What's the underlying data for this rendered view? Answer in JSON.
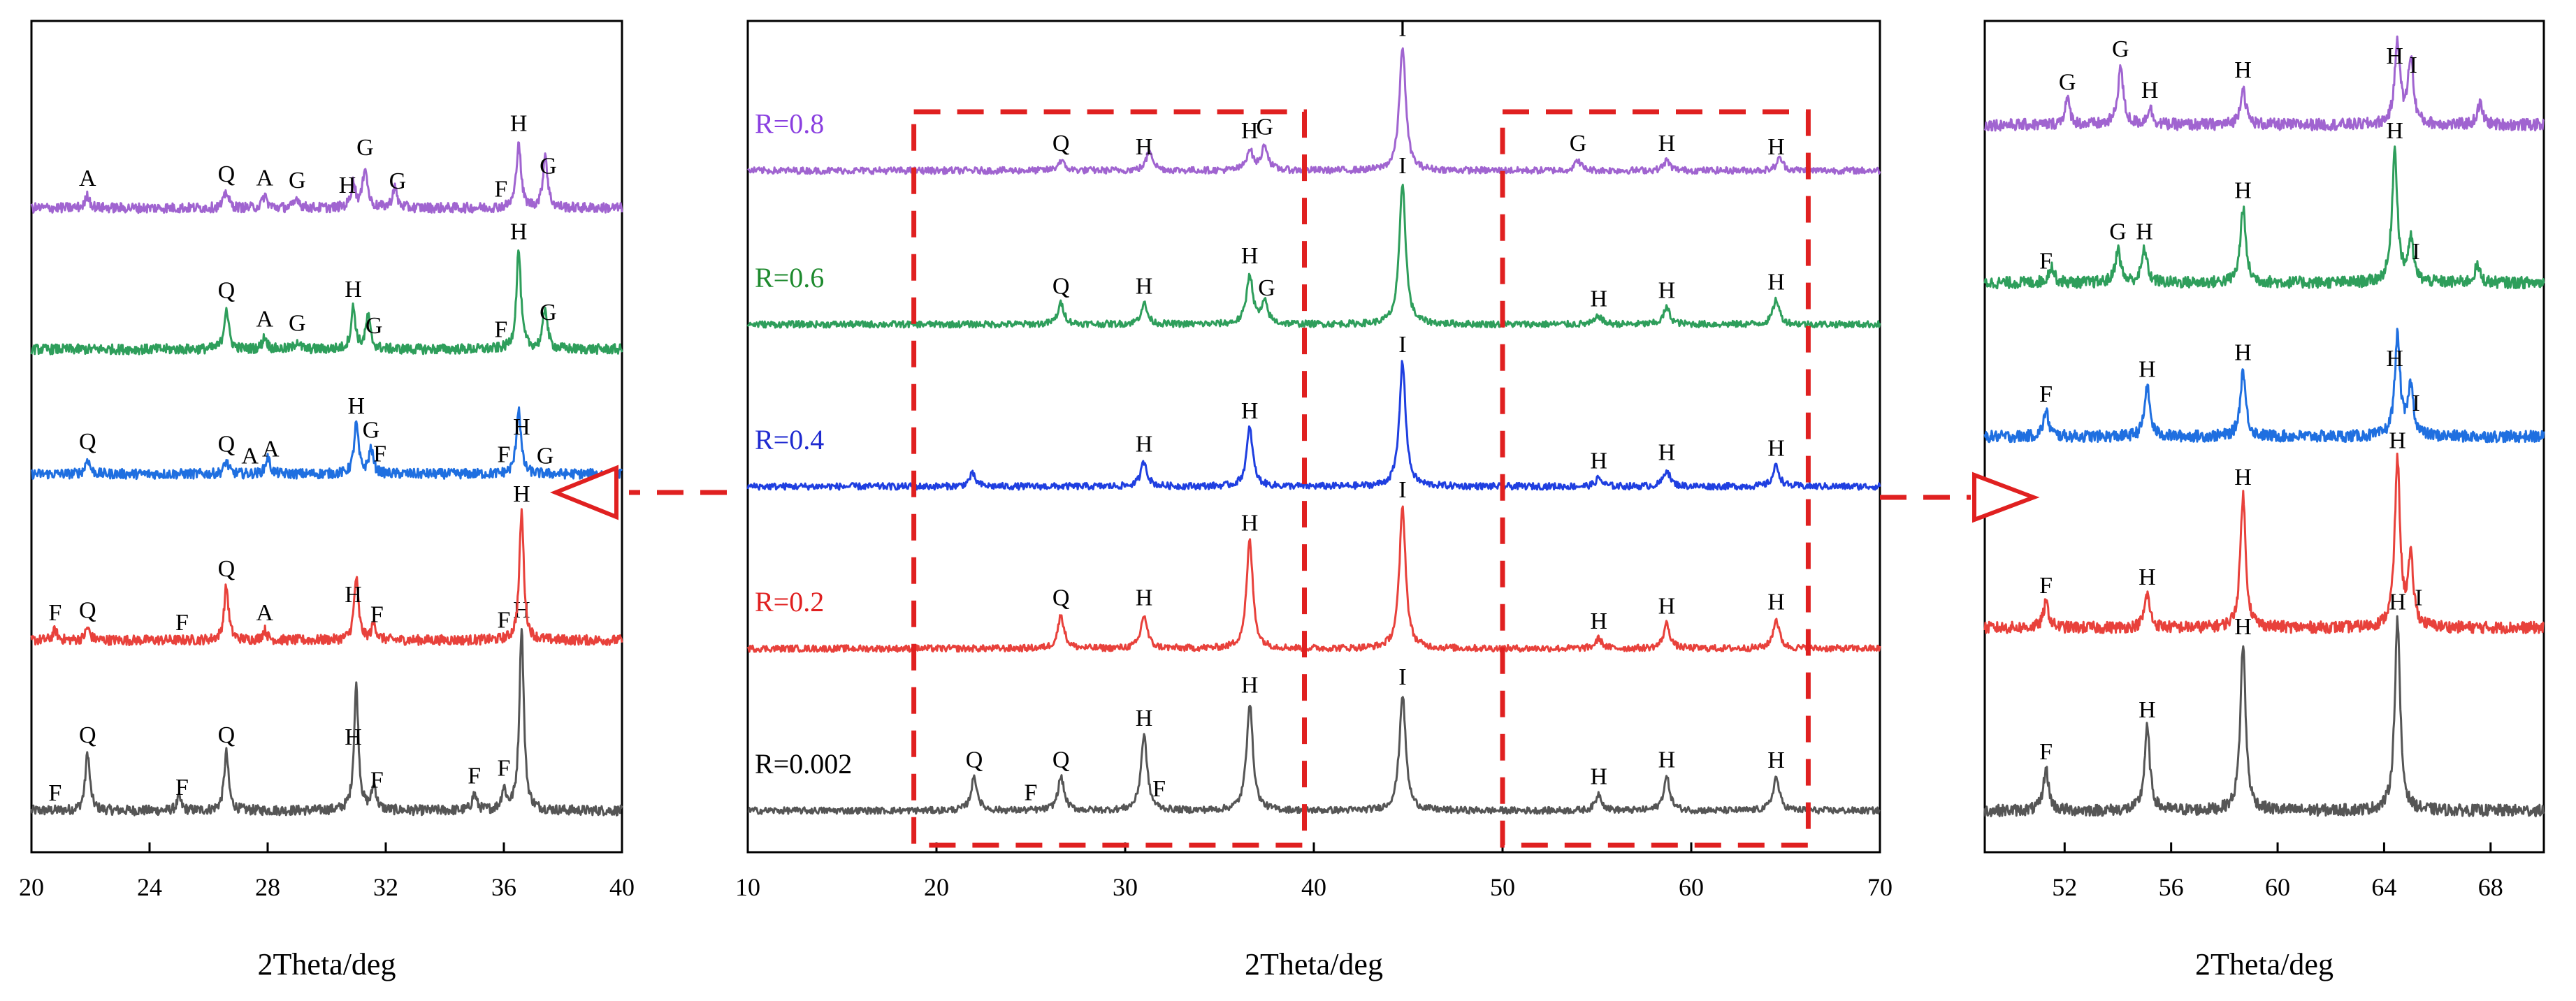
{
  "chart_data": [
    {
      "id": "left",
      "type": "line",
      "title": "",
      "xlabel": "2Theta/deg",
      "ylabel": "",
      "xlim": [
        20,
        40
      ],
      "xticks": [
        20,
        24,
        28,
        32,
        36,
        40
      ],
      "grid": false,
      "series": [
        {
          "name": "R=0.002",
          "color": "#555555",
          "base": 0.05,
          "labels": [
            {
              "x": 20.8,
              "t": "F"
            },
            {
              "x": 21.9,
              "t": "Q"
            },
            {
              "x": 25.1,
              "t": "F"
            },
            {
              "x": 26.6,
              "t": "Q"
            },
            {
              "x": 30.9,
              "t": "H"
            },
            {
              "x": 31.7,
              "t": "F"
            },
            {
              "x": 35.0,
              "t": "F"
            },
            {
              "x": 36.0,
              "t": "F"
            },
            {
              "x": 36.6,
              "t": "H"
            }
          ],
          "peaks": [
            [
              21.9,
              0.07
            ],
            [
              25.0,
              0.015
            ],
            [
              26.6,
              0.07
            ],
            [
              31.0,
              0.15
            ],
            [
              31.6,
              0.03
            ],
            [
              35.0,
              0.02
            ],
            [
              36.0,
              0.025
            ],
            [
              36.6,
              0.22
            ]
          ]
        },
        {
          "name": "R=0.2",
          "color": "#e8413b",
          "base": 0.255,
          "labels": [
            {
              "x": 20.8,
              "t": "F"
            },
            {
              "x": 21.9,
              "t": "Q"
            },
            {
              "x": 25.1,
              "t": "F"
            },
            {
              "x": 26.6,
              "t": "Q"
            },
            {
              "x": 27.9,
              "t": "A"
            },
            {
              "x": 30.9,
              "t": "H"
            },
            {
              "x": 31.7,
              "t": "F"
            },
            {
              "x": 36.0,
              "t": "F"
            },
            {
              "x": 36.6,
              "t": "H"
            }
          ],
          "peaks": [
            [
              20.8,
              0.012
            ],
            [
              21.9,
              0.015
            ],
            [
              26.6,
              0.065
            ],
            [
              27.9,
              0.012
            ],
            [
              31.0,
              0.075
            ],
            [
              31.6,
              0.02
            ],
            [
              36.6,
              0.155
            ]
          ]
        },
        {
          "name": "R=0.4",
          "color": "#1f6fe0",
          "base": 0.455,
          "labels": [
            {
              "x": 21.9,
              "t": "Q"
            },
            {
              "x": 26.6,
              "t": "Q"
            },
            {
              "x": 27.4,
              "t": "A"
            },
            {
              "x": 28.1,
              "t": "A"
            },
            {
              "x": 31.0,
              "t": "H"
            },
            {
              "x": 31.5,
              "t": "G"
            },
            {
              "x": 31.8,
              "t": "F"
            },
            {
              "x": 36.0,
              "t": "F"
            },
            {
              "x": 36.6,
              "t": "H"
            },
            {
              "x": 37.4,
              "t": "G"
            }
          ],
          "peaks": [
            [
              21.9,
              0.018
            ],
            [
              26.6,
              0.015
            ],
            [
              28.0,
              0.02
            ],
            [
              31.0,
              0.06
            ],
            [
              31.5,
              0.03
            ],
            [
              36.5,
              0.08
            ]
          ]
        },
        {
          "name": "R=0.6",
          "color": "#2e9e5b",
          "base": 0.605,
          "labels": [
            {
              "x": 26.6,
              "t": "Q"
            },
            {
              "x": 27.9,
              "t": "A"
            },
            {
              "x": 29.0,
              "t": "G"
            },
            {
              "x": 30.9,
              "t": "H"
            },
            {
              "x": 31.6,
              "t": "G"
            },
            {
              "x": 35.9,
              "t": "F"
            },
            {
              "x": 36.5,
              "t": "H"
            },
            {
              "x": 37.5,
              "t": "G"
            }
          ],
          "peaks": [
            [
              26.6,
              0.05
            ],
            [
              27.9,
              0.015
            ],
            [
              29.0,
              0.01
            ],
            [
              30.9,
              0.05
            ],
            [
              31.4,
              0.04
            ],
            [
              36.5,
              0.12
            ],
            [
              37.4,
              0.05
            ]
          ]
        },
        {
          "name": "R=0.8",
          "color": "#a064d0",
          "base": 0.775,
          "labels": [
            {
              "x": 21.9,
              "t": "A"
            },
            {
              "x": 26.6,
              "t": "Q"
            },
            {
              "x": 27.9,
              "t": "A"
            },
            {
              "x": 29.0,
              "t": "G"
            },
            {
              "x": 30.7,
              "t": "H"
            },
            {
              "x": 31.3,
              "t": "G"
            },
            {
              "x": 32.4,
              "t": "G"
            },
            {
              "x": 35.9,
              "t": "F"
            },
            {
              "x": 36.5,
              "t": "H"
            },
            {
              "x": 37.5,
              "t": "G"
            }
          ],
          "peaks": [
            [
              21.9,
              0.015
            ],
            [
              26.6,
              0.02
            ],
            [
              27.9,
              0.015
            ],
            [
              29.0,
              0.012
            ],
            [
              30.9,
              0.03
            ],
            [
              31.3,
              0.05
            ],
            [
              32.3,
              0.025
            ],
            [
              36.5,
              0.08
            ],
            [
              37.4,
              0.065
            ]
          ]
        }
      ]
    },
    {
      "id": "middle",
      "type": "line",
      "title": "",
      "xlabel": "2Theta/deg",
      "ylabel": "",
      "xlim": [
        10,
        70
      ],
      "xticks": [
        10,
        20,
        30,
        40,
        50,
        60,
        70
      ],
      "grid": false,
      "series": [
        {
          "name": "R=0.002",
          "color": "#555555",
          "base": 0.05,
          "labels": [
            {
              "x": 22.0,
              "t": "Q"
            },
            {
              "x": 25.0,
              "t": "F"
            },
            {
              "x": 26.6,
              "t": "Q"
            },
            {
              "x": 31.0,
              "t": "H"
            },
            {
              "x": 31.8,
              "t": "F"
            },
            {
              "x": 36.6,
              "t": "H"
            },
            {
              "x": 44.7,
              "t": "I"
            },
            {
              "x": 55.1,
              "t": "H"
            },
            {
              "x": 58.7,
              "t": "H"
            },
            {
              "x": 64.5,
              "t": "H"
            }
          ],
          "peaks": [
            [
              22.0,
              0.04
            ],
            [
              26.6,
              0.04
            ],
            [
              31.0,
              0.09
            ],
            [
              36.6,
              0.13
            ],
            [
              44.7,
              0.14
            ],
            [
              55.1,
              0.02
            ],
            [
              58.7,
              0.04
            ],
            [
              64.5,
              0.04
            ]
          ]
        },
        {
          "name": "R=0.2",
          "color": "#e8413b",
          "base": 0.245,
          "labels": [
            {
              "x": 26.6,
              "t": "Q"
            },
            {
              "x": 31.0,
              "t": "H"
            },
            {
              "x": 36.6,
              "t": "H"
            },
            {
              "x": 44.7,
              "t": "I"
            },
            {
              "x": 55.1,
              "t": "H"
            },
            {
              "x": 58.7,
              "t": "H"
            },
            {
              "x": 64.5,
              "t": "H"
            }
          ],
          "peaks": [
            [
              26.6,
              0.04
            ],
            [
              31.0,
              0.04
            ],
            [
              36.6,
              0.13
            ],
            [
              44.7,
              0.17
            ],
            [
              55.1,
              0.012
            ],
            [
              58.7,
              0.03
            ],
            [
              64.5,
              0.035
            ]
          ]
        },
        {
          "name": "R=0.4",
          "color": "#1f3fe0",
          "base": 0.44,
          "labels": [
            {
              "x": 31.0,
              "t": "H"
            },
            {
              "x": 36.6,
              "t": "H"
            },
            {
              "x": 44.7,
              "t": "I"
            },
            {
              "x": 55.1,
              "t": "H"
            },
            {
              "x": 58.7,
              "t": "H"
            },
            {
              "x": 64.5,
              "t": "H"
            }
          ],
          "peaks": [
            [
              21.9,
              0.015
            ],
            [
              31.0,
              0.03
            ],
            [
              36.6,
              0.07
            ],
            [
              44.7,
              0.15
            ],
            [
              55.1,
              0.01
            ],
            [
              58.7,
              0.02
            ],
            [
              64.5,
              0.025
            ]
          ]
        },
        {
          "name": "R=0.6",
          "color": "#2e9e5b",
          "base": 0.635,
          "labels": [
            {
              "x": 26.6,
              "t": "Q"
            },
            {
              "x": 31.0,
              "t": "H"
            },
            {
              "x": 36.6,
              "t": "H"
            },
            {
              "x": 37.5,
              "t": "G"
            },
            {
              "x": 44.7,
              "t": "I"
            },
            {
              "x": 55.1,
              "t": "H"
            },
            {
              "x": 58.7,
              "t": "H"
            },
            {
              "x": 64.5,
              "t": "H"
            }
          ],
          "peaks": [
            [
              26.6,
              0.025
            ],
            [
              31.0,
              0.025
            ],
            [
              36.6,
              0.06
            ],
            [
              37.4,
              0.025
            ],
            [
              44.7,
              0.17
            ],
            [
              55.1,
              0.01
            ],
            [
              58.7,
              0.02
            ],
            [
              64.5,
              0.03
            ]
          ]
        },
        {
          "name": "R=0.8",
          "color": "#a064d0",
          "base": 0.82,
          "labels": [
            {
              "x": 26.6,
              "t": "Q"
            },
            {
              "x": 31.0,
              "t": "H"
            },
            {
              "x": 36.6,
              "t": "H"
            },
            {
              "x": 37.4,
              "t": "G"
            },
            {
              "x": 44.7,
              "t": "I"
            },
            {
              "x": 54.0,
              "t": "G"
            },
            {
              "x": 58.7,
              "t": "H"
            },
            {
              "x": 64.5,
              "t": "H"
            }
          ],
          "peaks": [
            [
              26.6,
              0.012
            ],
            [
              31.3,
              0.025
            ],
            [
              36.6,
              0.025
            ],
            [
              37.4,
              0.03
            ],
            [
              44.7,
              0.15
            ],
            [
              54.0,
              0.012
            ],
            [
              58.7,
              0.012
            ],
            [
              64.7,
              0.015
            ]
          ]
        }
      ],
      "r_labels": [
        {
          "text": "R=0.8",
          "color": "#8a3fe0",
          "base": 0.82
        },
        {
          "text": "R=0.6",
          "color": "#1e8a2e",
          "base": 0.635
        },
        {
          "text": "R=0.4",
          "color": "#1f2ad0",
          "base": 0.44
        },
        {
          "text": "R=0.2",
          "color": "#e02020",
          "base": 0.245
        },
        {
          "text": "R=0.002",
          "color": "#000000",
          "base": 0.05
        }
      ]
    },
    {
      "id": "right",
      "type": "line",
      "title": "",
      "xlabel": "2Theta/deg",
      "ylabel": "",
      "xlim": [
        49,
        70
      ],
      "xticks": [
        52,
        56,
        60,
        64,
        68
      ],
      "grid": false,
      "series": [
        {
          "name": "R=0.002",
          "color": "#555555",
          "base": 0.05,
          "labels": [
            {
              "x": 51.3,
              "t": "F"
            },
            {
              "x": 55.1,
              "t": "H"
            },
            {
              "x": 58.7,
              "t": "H"
            },
            {
              "x": 64.5,
              "t": "H"
            }
          ],
          "peaks": [
            [
              51.3,
              0.05
            ],
            [
              55.1,
              0.1
            ],
            [
              58.7,
              0.2
            ],
            [
              64.5,
              0.23
            ]
          ]
        },
        {
          "name": "R=0.2",
          "color": "#e8413b",
          "base": 0.27,
          "labels": [
            {
              "x": 51.3,
              "t": "F"
            },
            {
              "x": 55.1,
              "t": "H"
            },
            {
              "x": 58.7,
              "t": "H"
            },
            {
              "x": 64.5,
              "t": "H"
            },
            {
              "x": 65.3,
              "t": "I"
            }
          ],
          "peaks": [
            [
              51.3,
              0.03
            ],
            [
              55.1,
              0.04
            ],
            [
              58.7,
              0.16
            ],
            [
              64.5,
              0.2
            ],
            [
              65.0,
              0.08
            ]
          ]
        },
        {
          "name": "R=0.4",
          "color": "#1f6fe0",
          "base": 0.5,
          "labels": [
            {
              "x": 51.3,
              "t": "F"
            },
            {
              "x": 55.1,
              "t": "H"
            },
            {
              "x": 58.7,
              "t": "H"
            },
            {
              "x": 64.4,
              "t": "H"
            },
            {
              "x": 65.2,
              "t": "I"
            }
          ],
          "peaks": [
            [
              51.3,
              0.03
            ],
            [
              55.1,
              0.06
            ],
            [
              58.7,
              0.08
            ],
            [
              64.5,
              0.12
            ],
            [
              65.0,
              0.06
            ]
          ]
        },
        {
          "name": "R=0.6",
          "color": "#2e9e5b",
          "base": 0.685,
          "labels": [
            {
              "x": 51.3,
              "t": "F"
            },
            {
              "x": 54.0,
              "t": "G"
            },
            {
              "x": 55.0,
              "t": "H"
            },
            {
              "x": 58.7,
              "t": "H"
            },
            {
              "x": 64.4,
              "t": "H"
            },
            {
              "x": 65.2,
              "t": "I"
            }
          ],
          "peaks": [
            [
              51.5,
              0.02
            ],
            [
              54.0,
              0.04
            ],
            [
              55.0,
              0.04
            ],
            [
              58.7,
              0.09
            ],
            [
              64.4,
              0.16
            ],
            [
              65.0,
              0.05
            ],
            [
              67.5,
              0.02
            ]
          ]
        },
        {
          "name": "R=0.8",
          "color": "#a064d0",
          "base": 0.875,
          "labels": [
            {
              "x": 52.1,
              "t": "G"
            },
            {
              "x": 54.1,
              "t": "G"
            },
            {
              "x": 55.2,
              "t": "H"
            },
            {
              "x": 58.7,
              "t": "H"
            },
            {
              "x": 64.4,
              "t": "H"
            },
            {
              "x": 65.1,
              "t": "I"
            }
          ],
          "peaks": [
            [
              52.1,
              0.03
            ],
            [
              54.1,
              0.07
            ],
            [
              55.2,
              0.02
            ],
            [
              58.7,
              0.045
            ],
            [
              64.5,
              0.1
            ],
            [
              65.0,
              0.08
            ],
            [
              67.6,
              0.025
            ]
          ]
        }
      ]
    }
  ],
  "colors": {
    "dashed_box": "#e02020",
    "arrow": "#e02020",
    "axis": "#000000"
  }
}
